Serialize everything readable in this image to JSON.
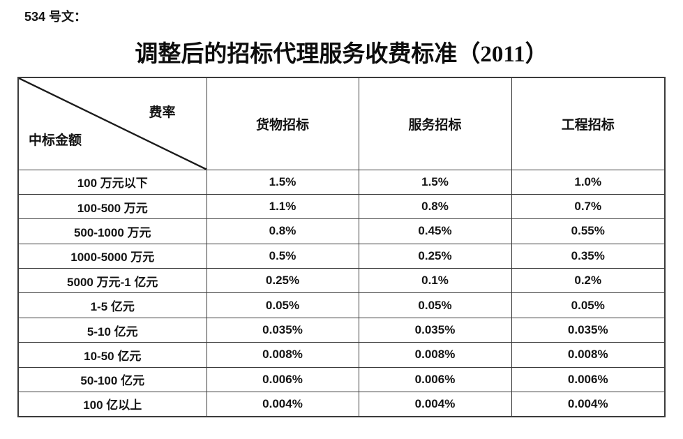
{
  "doc": {
    "ref": "534 号文：",
    "title": "调整后的招标代理服务收费标准（2011）"
  },
  "table": {
    "corner": {
      "top_right": "费率",
      "bottom_left": "中标金额"
    },
    "columns": [
      "货物招标",
      "服务招标",
      "工程招标"
    ],
    "rows": [
      {
        "amount": "100 万元以下",
        "rates": [
          "1.5%",
          "1.5%",
          "1.0%"
        ]
      },
      {
        "amount": "100-500 万元",
        "rates": [
          "1.1%",
          "0.8%",
          "0.7%"
        ]
      },
      {
        "amount": "500-1000 万元",
        "rates": [
          "0.8%",
          "0.45%",
          "0.55%"
        ]
      },
      {
        "amount": "1000-5000 万元",
        "rates": [
          "0.5%",
          "0.25%",
          "0.35%"
        ]
      },
      {
        "amount": "5000 万元-1 亿元",
        "rates": [
          "0.25%",
          "0.1%",
          "0.2%"
        ]
      },
      {
        "amount": "1-5 亿元",
        "rates": [
          "0.05%",
          "0.05%",
          "0.05%"
        ]
      },
      {
        "amount": "5-10 亿元",
        "rates": [
          "0.035%",
          "0.035%",
          "0.035%"
        ]
      },
      {
        "amount": "10-50 亿元",
        "rates": [
          "0.008%",
          "0.008%",
          "0.008%"
        ]
      },
      {
        "amount": "50-100 亿元",
        "rates": [
          "0.006%",
          "0.006%",
          "0.006%"
        ]
      },
      {
        "amount": "100 亿以上",
        "rates": [
          "0.004%",
          "0.004%",
          "0.004%"
        ]
      }
    ]
  },
  "colors": {
    "border": "#3b3b3b",
    "text": "#141414",
    "background": "#ffffff"
  }
}
